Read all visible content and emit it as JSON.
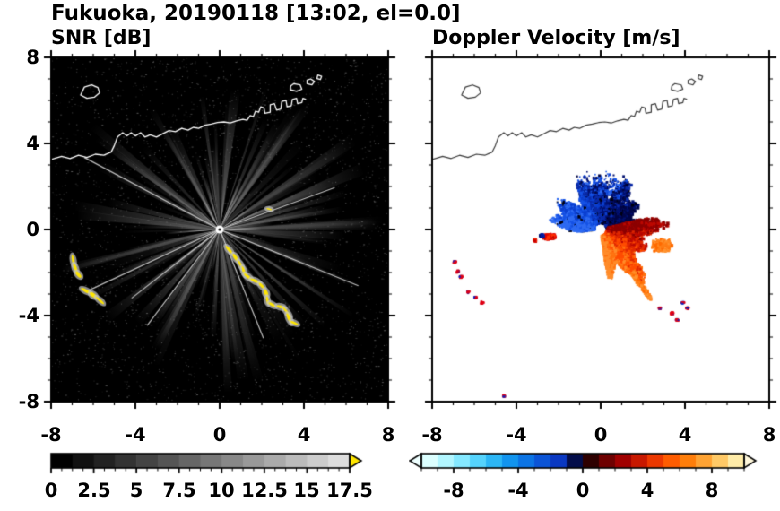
{
  "figure": {
    "title": "Fukuoka, 20190118 [13:02, el=0.0]"
  },
  "axes": {
    "x": [
      "-8",
      "-4",
      "0",
      "4",
      "8"
    ],
    "y": [
      "8",
      "4",
      "0",
      "-4",
      "-8"
    ]
  },
  "panels": [
    {
      "title": "SNR [dB]",
      "bg": "#000000",
      "colorbar": {
        "labels": [
          "0",
          "2.5",
          "5",
          "7.5",
          "10",
          "12.5",
          "15",
          "17.5"
        ],
        "min": 0,
        "max": 17.5,
        "colors": [
          "#000000",
          "#111111",
          "#222222",
          "#333333",
          "#444444",
          "#555555",
          "#666666",
          "#777777",
          "#888888",
          "#999999",
          "#aaaaaa",
          "#bbbbbb",
          "#cccccc",
          "#dddddd"
        ],
        "over_color": "#ffe600"
      }
    },
    {
      "title": "Doppler Velocity [m/s]",
      "bg": "#ffffff",
      "colorbar": {
        "labels": [
          "-8",
          "-4",
          "0",
          "4",
          "8"
        ],
        "min": -10,
        "max": 10,
        "colors": [
          "#dcffff",
          "#b2f6ff",
          "#84e8ff",
          "#55d3fc",
          "#2cb6f5",
          "#1294ee",
          "#0c74e4",
          "#0b54d6",
          "#0a38c2",
          "#030d4a",
          "#2e0000",
          "#6e0000",
          "#a00000",
          "#c81800",
          "#ec3800",
          "#ff5c00",
          "#ff7e0a",
          "#ffa333",
          "#ffc966",
          "#ffeca8"
        ],
        "under_color": "#eeffff",
        "over_color": "#fff8dc"
      }
    }
  ],
  "chart_data": [
    {
      "type": "heatmap",
      "title": "SNR [dB]",
      "xlim": [
        -8,
        8
      ],
      "ylim": [
        -8,
        8
      ],
      "xticks": [
        -8,
        -4,
        0,
        4,
        8
      ],
      "yticks": [
        -8,
        -4,
        0,
        4,
        8
      ],
      "background": "black",
      "radar_center": [
        0,
        0
      ],
      "colorbar": {
        "min": 0,
        "max": 17.5,
        "tick_labels": [
          0,
          2.5,
          5,
          7.5,
          10,
          12.5,
          15,
          17.5
        ],
        "colormap": "grayscale",
        "over_color": "yellow"
      },
      "description": "Radar PPI of SNR: gray radial beams fading with range from the radar at (0,0); yellow over-range clutter in a chain SE of the radar and two groups in the west; white coastline across the top.",
      "coastline": {
        "mainland": [
          [
            -8,
            3.25
          ],
          [
            -7.5,
            3.4
          ],
          [
            -7.1,
            3.3
          ],
          [
            -6.7,
            3.45
          ],
          [
            -6.3,
            3.35
          ],
          [
            -5.9,
            3.5
          ],
          [
            -5.5,
            3.45
          ],
          [
            -5.15,
            3.6
          ],
          [
            -5.0,
            3.9
          ],
          [
            -4.85,
            4.3
          ],
          [
            -4.6,
            4.5
          ],
          [
            -4.4,
            4.35
          ],
          [
            -4.2,
            4.5
          ],
          [
            -4.0,
            4.35
          ],
          [
            -3.75,
            4.5
          ],
          [
            -3.55,
            4.3
          ],
          [
            -3.3,
            4.4
          ],
          [
            -3.0,
            4.3
          ],
          [
            -2.7,
            4.45
          ],
          [
            -2.4,
            4.6
          ],
          [
            -2.1,
            4.55
          ],
          [
            -1.8,
            4.7
          ],
          [
            -1.5,
            4.62
          ],
          [
            -1.25,
            4.75
          ],
          [
            -1.0,
            4.7
          ],
          [
            -0.7,
            4.85
          ],
          [
            -0.4,
            4.9
          ],
          [
            -0.1,
            4.97
          ],
          [
            0.2,
            5.0
          ],
          [
            0.5,
            4.95
          ],
          [
            0.8,
            5.05
          ],
          [
            1.1,
            5.12
          ],
          [
            1.3,
            5.08
          ],
          [
            1.45,
            5.3
          ],
          [
            1.6,
            5.25
          ],
          [
            1.7,
            5.5
          ],
          [
            1.85,
            5.45
          ],
          [
            1.95,
            5.7
          ],
          [
            2.1,
            5.65
          ],
          [
            2.15,
            5.4
          ],
          [
            2.4,
            5.45
          ],
          [
            2.4,
            5.8
          ],
          [
            2.6,
            5.85
          ],
          [
            2.7,
            5.55
          ],
          [
            2.9,
            5.6
          ],
          [
            2.95,
            5.95
          ],
          [
            3.15,
            6.0
          ],
          [
            3.2,
            5.7
          ],
          [
            3.4,
            5.75
          ],
          [
            3.45,
            6.05
          ],
          [
            3.65,
            6.1
          ],
          [
            3.7,
            5.85
          ],
          [
            3.9,
            5.9
          ],
          [
            3.95,
            6.1
          ],
          [
            4.1,
            6.05
          ]
        ],
        "islands": [
          [
            [
              -6.6,
              6.25
            ],
            [
              -6.3,
              6.1
            ],
            [
              -5.95,
              6.15
            ],
            [
              -5.7,
              6.35
            ],
            [
              -5.78,
              6.6
            ],
            [
              -6.08,
              6.72
            ],
            [
              -6.42,
              6.62
            ]
          ],
          [
            [
              3.35,
              6.5
            ],
            [
              3.65,
              6.42
            ],
            [
              3.9,
              6.52
            ],
            [
              3.82,
              6.72
            ],
            [
              3.52,
              6.78
            ],
            [
              3.38,
              6.68
            ]
          ],
          [
            [
              4.15,
              6.78
            ],
            [
              4.38,
              6.72
            ],
            [
              4.5,
              6.88
            ],
            [
              4.32,
              7.0
            ],
            [
              4.15,
              6.94
            ]
          ],
          [
            [
              4.62,
              7.02
            ],
            [
              4.78,
              6.97
            ],
            [
              4.84,
              7.12
            ],
            [
              4.66,
              7.18
            ]
          ]
        ]
      },
      "snr_features": {
        "speckle_n": 3000,
        "beams": {
          "n": 150,
          "len_min": 45,
          "len_max": 185
        },
        "bright_core": {
          "n": 32,
          "len_min": 20,
          "len_max": 65
        },
        "rays_deg": [
          152,
          205,
          218,
          233,
          292,
          338,
          20
        ],
        "clutter": {
          "color": "#ffe600",
          "fringe": "#c8c8c8",
          "blob_len": 0.45,
          "blob_wid": 0.13,
          "chain": [
            [
              0.45,
              -0.95,
              -50
            ],
            [
              0.75,
              -1.3,
              -55
            ],
            [
              1.0,
              -1.65,
              -62
            ],
            [
              1.15,
              -1.95,
              -72
            ],
            [
              1.35,
              -2.2,
              -40
            ],
            [
              1.7,
              -2.4,
              -25
            ],
            [
              2.0,
              -2.62,
              -45
            ],
            [
              2.2,
              -2.95,
              -70
            ],
            [
              2.27,
              -3.3,
              -80
            ],
            [
              2.5,
              -3.5,
              -30
            ],
            [
              2.9,
              -3.6,
              -15
            ],
            [
              3.2,
              -3.85,
              -50
            ],
            [
              3.3,
              -4.15,
              -65
            ],
            [
              3.55,
              -4.35,
              -25
            ]
          ],
          "west1": [
            [
              -6.95,
              -1.45,
              -80
            ],
            [
              -6.85,
              -1.8,
              -70
            ],
            [
              -6.7,
              -2.1,
              -48
            ]
          ],
          "west2": [
            [
              -6.35,
              -2.85,
              -28
            ],
            [
              -6.0,
              -3.05,
              -35
            ],
            [
              -5.68,
              -3.3,
              -42
            ]
          ],
          "extra": [
            [
              2.35,
              0.95,
              -15
            ]
          ]
        }
      }
    },
    {
      "type": "heatmap",
      "title": "Doppler Velocity [m/s]",
      "xlim": [
        -8,
        8
      ],
      "ylim": [
        -8,
        8
      ],
      "xticks": [
        -8,
        -4,
        0,
        4,
        8
      ],
      "yticks": [
        -8,
        -4,
        0,
        4,
        8
      ],
      "background": "white",
      "radar_center": [
        0,
        0
      ],
      "colorbar": {
        "min": -10,
        "max": 10,
        "tick_labels": [
          -8,
          -4,
          0,
          4,
          8
        ],
        "colormap": "cyan-blue-black-red-orange-yellow"
      },
      "description": "Radar PPI of Doppler velocity: blue (negative) fan north of the radar, red/orange (positive) fan east and southeast, small red/blue ship echoes west and southeast, coastline drawn in dark gray.",
      "doppler_features": {
        "blue_fan": {
          "a0": 15,
          "a1": 185,
          "rmin": 0.28,
          "rbase": 1.5,
          "rvar": 1.2,
          "n": 4200,
          "black_frac": 0.06,
          "palette": [
            "#000646",
            "#001070",
            "#0a2aa8",
            "#0b3fd0",
            "#1552e6",
            "#2e6af2"
          ]
        },
        "blue_spikes": {
          "a0": 60,
          "a1": 115,
          "rmin": 1.7,
          "rmax": 2.85,
          "n": 450
        },
        "red_fan": {
          "a0": -82,
          "a1": 14,
          "rmin": 0.28,
          "rbase": 1.7,
          "rvar": 1.4,
          "n": 4800,
          "palette": [
            "#ff8c2a",
            "#ff7210",
            "#ff4c00",
            "#e02800",
            "#bc0800",
            "#8c0000"
          ]
        },
        "orange_palette": [
          "#ff7c14",
          "#ff9430",
          "#ff6a00",
          "#ff8820"
        ],
        "orange_lobe": {
          "cx": 2.9,
          "cy": -0.75,
          "sx": 0.6,
          "sy": 0.38,
          "n": 750
        },
        "tail": {
          "x0": 1.5,
          "y0": -2.0,
          "x1": 2.35,
          "y1": -3.2,
          "jitter": 0.16,
          "n": 280
        },
        "left_blob": {
          "cx": -2.45,
          "cy": -0.33,
          "sx": 0.38,
          "sy": 0.16,
          "n": 400,
          "blue_dot": {
            "cx": -2.78,
            "cy": -0.3,
            "s": 0.09,
            "n": 100
          },
          "red_bit": {
            "cx": -3.12,
            "cy": -0.5,
            "s": 0.07,
            "n": 60
          }
        },
        "red_small_palette": [
          "#e00000",
          "#ff3000",
          "#c00000"
        ],
        "specks": [
          [
            -6.95,
            -1.5
          ],
          [
            -6.8,
            -1.95
          ],
          [
            -6.65,
            -2.2
          ],
          [
            -6.3,
            -2.9
          ],
          [
            -5.95,
            -3.15
          ],
          [
            -5.65,
            -3.4
          ],
          [
            2.8,
            -3.65
          ],
          [
            3.35,
            -3.9
          ],
          [
            3.6,
            -4.2
          ],
          [
            3.9,
            -3.4
          ],
          [
            4.1,
            -3.65
          ],
          [
            -4.6,
            -7.75
          ]
        ]
      }
    }
  ]
}
